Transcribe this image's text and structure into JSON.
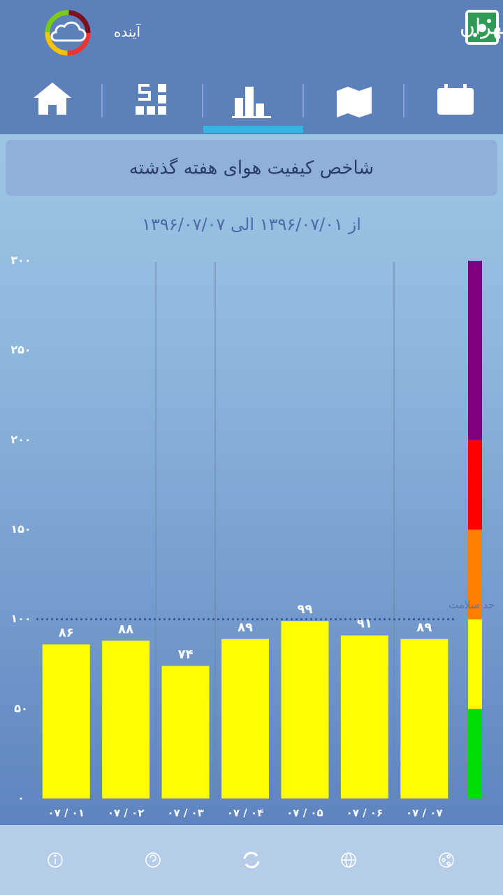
{
  "header": {
    "title": "کیفیت هوای تهران",
    "forecast_label": "آینده"
  },
  "chart_data": {
    "type": "bar",
    "title": "شاخص کیفیت هوای هفته گذشته",
    "subtitle": "از  ۱۳۹۶/۰۷/۰۱  الی  ۱۳۹۶/۰۷/۰۷",
    "categories": [
      "۰۷ / ۰۱",
      "۰۷ / ۰۲",
      "۰۷ / ۰۳",
      "۰۷ / ۰۴",
      "۰۷ / ۰۵",
      "۰۷ / ۰۶",
      "۰۷ / ۰۷"
    ],
    "values": [
      86,
      88,
      74,
      89,
      99,
      91,
      89
    ],
    "value_labels": [
      "۸۶",
      "۸۸",
      "۷۴",
      "۸۹",
      "۹۹",
      "۹۱",
      "۸۹"
    ],
    "color": "#ffff00",
    "ylim": [
      0,
      300
    ],
    "yticks": [
      {
        "value": 0,
        "label": "۰"
      },
      {
        "value": 50,
        "label": "۵۰"
      },
      {
        "value": 100,
        "label": "۱۰۰"
      },
      {
        "value": 150,
        "label": "۱۵۰"
      },
      {
        "value": 200,
        "label": "۲۰۰"
      },
      {
        "value": 250,
        "label": "۲۵۰"
      },
      {
        "value": 300,
        "label": "۳۰۰"
      }
    ],
    "threshold": {
      "value": 100,
      "label": "حد سلامت"
    },
    "bands": [
      {
        "from": 0,
        "to": 50,
        "color": "#00dd00"
      },
      {
        "from": 50,
        "to": 100,
        "color": "#ffff00"
      },
      {
        "from": 100,
        "to": 150,
        "color": "#ff7e00"
      },
      {
        "from": 150,
        "to": 200,
        "color": "#ff0000"
      },
      {
        "from": 200,
        "to": 300,
        "color": "#7e0080"
      }
    ]
  }
}
